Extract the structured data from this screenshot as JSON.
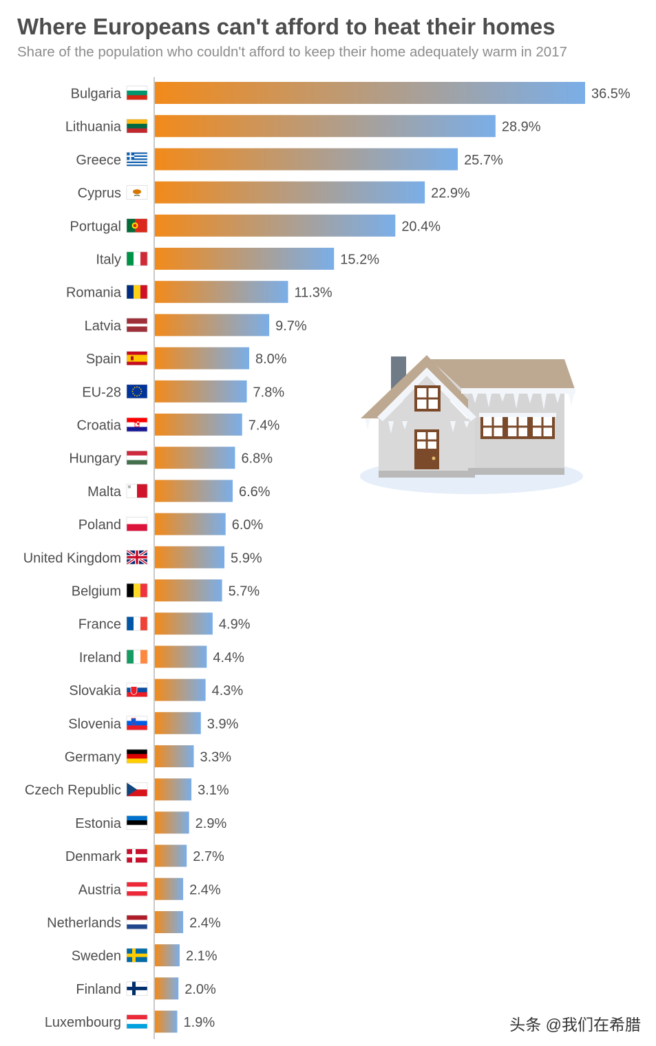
{
  "header": {
    "title": "Where Europeans can't afford to heat their homes",
    "subtitle": "Share of the population who couldn't afford to keep their home adequately warm in 2017"
  },
  "watermark": "头条 @我们在希腊",
  "colors": {
    "bar_start": "#f28a1a",
    "bar_end": "#7aaee8",
    "label": "#4d4d4d",
    "axis": "#c8c8c8"
  },
  "chart_data": {
    "type": "bar",
    "orientation": "horizontal",
    "title": "Where Europeans can't afford to heat their homes",
    "subtitle": "Share of the population who couldn't afford to keep their home adequately warm in 2017",
    "categories": [
      "Bulgaria",
      "Lithuania",
      "Greece",
      "Cyprus",
      "Portugal",
      "Italy",
      "Romania",
      "Latvia",
      "Spain",
      "EU-28",
      "Croatia",
      "Hungary",
      "Malta",
      "Poland",
      "United Kingdom",
      "Belgium",
      "France",
      "Ireland",
      "Slovakia",
      "Slovenia",
      "Germany",
      "Czech Republic",
      "Estonia",
      "Denmark",
      "Austria",
      "Netherlands",
      "Sweden",
      "Finland",
      "Luxembourg"
    ],
    "values": [
      36.5,
      28.9,
      25.7,
      22.9,
      20.4,
      15.2,
      11.3,
      9.7,
      8.0,
      7.8,
      7.4,
      6.8,
      6.6,
      6.0,
      5.9,
      5.7,
      4.9,
      4.4,
      4.3,
      3.9,
      3.3,
      3.1,
      2.9,
      2.7,
      2.4,
      2.4,
      2.1,
      2.0,
      1.9
    ],
    "value_labels": [
      "36.5%",
      "28.9%",
      "25.7%",
      "22.9%",
      "20.4%",
      "15.2%",
      "11.3%",
      "9.7%",
      "8.0%",
      "7.8%",
      "7.4%",
      "6.8%",
      "6.6%",
      "6.0%",
      "5.9%",
      "5.7%",
      "4.9%",
      "4.4%",
      "4.3%",
      "3.9%",
      "3.3%",
      "3.1%",
      "2.9%",
      "2.7%",
      "2.4%",
      "2.4%",
      "2.1%",
      "2.0%",
      "1.9%"
    ],
    "flags": [
      "bulgaria-flag-icon",
      "lithuania-flag-icon",
      "greece-flag-icon",
      "cyprus-flag-icon",
      "portugal-flag-icon",
      "italy-flag-icon",
      "romania-flag-icon",
      "latvia-flag-icon",
      "spain-flag-icon",
      "eu-flag-icon",
      "croatia-flag-icon",
      "hungary-flag-icon",
      "malta-flag-icon",
      "poland-flag-icon",
      "uk-flag-icon",
      "belgium-flag-icon",
      "france-flag-icon",
      "ireland-flag-icon",
      "slovakia-flag-icon",
      "slovenia-flag-icon",
      "germany-flag-icon",
      "czech-flag-icon",
      "estonia-flag-icon",
      "denmark-flag-icon",
      "austria-flag-icon",
      "netherlands-flag-icon",
      "sweden-flag-icon",
      "finland-flag-icon",
      "luxembourg-flag-icon"
    ],
    "xlim": [
      0,
      36.5
    ],
    "grid": false,
    "legend": "none",
    "illustration": "snowy-house-icon"
  }
}
